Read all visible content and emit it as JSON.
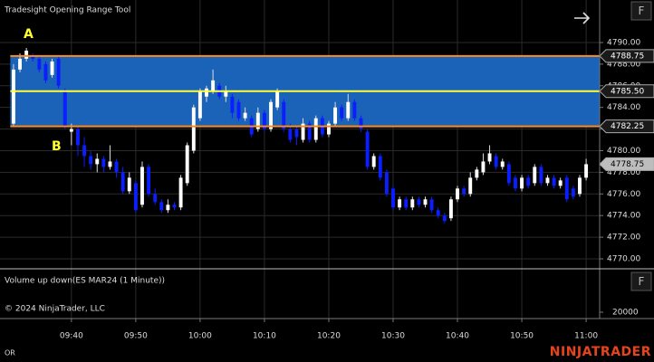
{
  "chart_data": {
    "type": "candlestick",
    "title": "Tradesight Opening Range Tool",
    "x": [
      571,
      572,
      573,
      574,
      575,
      576,
      577,
      578,
      579,
      580,
      581,
      582,
      583,
      584,
      585,
      586,
      587,
      588,
      589,
      590,
      591,
      592,
      593,
      594,
      595,
      596,
      597,
      598,
      599,
      600,
      601,
      602,
      603,
      604,
      605,
      606,
      607,
      608,
      609,
      610,
      611,
      612,
      613,
      614,
      615,
      616,
      617,
      618,
      619,
      620,
      621,
      622,
      623,
      624,
      625,
      626,
      627,
      628,
      629,
      630,
      631,
      632,
      633,
      634,
      635,
      636,
      637,
      638,
      639,
      640,
      641,
      642,
      643,
      644,
      645,
      646,
      647,
      648,
      649,
      650,
      651,
      652,
      653,
      654,
      655,
      656,
      657,
      658,
      659,
      660
    ],
    "open": [
      4782.5,
      4787.5,
      4788.5,
      4788.75,
      4788.5,
      4788,
      4787,
      4788.5,
      4785.5,
      4781.75,
      4782,
      4780.5,
      4779.5,
      4778.75,
      4779.25,
      4778.5,
      4779,
      4778,
      4776.25,
      4777,
      4775,
      4778.5,
      4776,
      4775.25,
      4774.5,
      4775,
      4774.75,
      4777,
      4780,
      4783,
      4785,
      4785.5,
      4786,
      4785,
      4785,
      4784.5,
      4783,
      4783,
      4782,
      4783.5,
      4782,
      4784,
      4784.5,
      4782,
      4782,
      4781,
      4782.5,
      4781,
      4783,
      4781.5,
      4782.5,
      4784,
      4783,
      4784.5,
      4783,
      4781.75,
      4778.5,
      4779.5,
      4778,
      4776.5,
      4774.75,
      4775.5,
      4774.75,
      4775.5,
      4775,
      4775.5,
      4774.5,
      4774,
      4773.75,
      4775.5,
      4776.5,
      4776,
      4777.5,
      4778,
      4779,
      4779.5,
      4778.5,
      4778.75,
      4777.5,
      4776.5,
      4777.5,
      4777,
      4778.5,
      4777,
      4777.5,
      4776.75,
      4777.5,
      4776.5,
      4776,
      4777.5
    ],
    "high": [
      4788,
      4789,
      4789.5,
      4789,
      4788.75,
      4788.25,
      4788.5,
      4788.75,
      4785.75,
      4782.5,
      4782.25,
      4781.25,
      4780,
      4779.75,
      4779.5,
      4780.5,
      4779.25,
      4778.5,
      4778,
      4777.25,
      4779,
      4778.75,
      4776.5,
      4775.5,
      4775.5,
      4775.25,
      4777.75,
      4780.75,
      4784.25,
      4785.75,
      4786,
      4787.5,
      4786.25,
      4786,
      4785.25,
      4784.75,
      4784,
      4783.25,
      4784,
      4783.75,
      4784.75,
      4785.75,
      4784.75,
      4782.5,
      4782.25,
      4783,
      4782.75,
      4783.25,
      4783.25,
      4782.75,
      4784.5,
      4784.25,
      4785.25,
      4784.75,
      4783.25,
      4782,
      4779.75,
      4779.75,
      4778.25,
      4776.75,
      4775.75,
      4775.75,
      4775.75,
      4775.75,
      4775.75,
      4775.75,
      4774.75,
      4774.25,
      4775.75,
      4776.75,
      4776.75,
      4778,
      4778.5,
      4779.75,
      4780.5,
      4779.75,
      4779.25,
      4779,
      4777.75,
      4777.75,
      4777.75,
      4778.75,
      4778.75,
      4777.75,
      4777.75,
      4777.5,
      4777.75,
      4776.75,
      4777.75,
      4779.25
    ],
    "low": [
      4782.25,
      4787.25,
      4788.25,
      4788.25,
      4787.25,
      4786.25,
      4786.75,
      4785.75,
      4782,
      4780.5,
      4779.5,
      4778.5,
      4778.25,
      4778,
      4778,
      4778.25,
      4777.5,
      4776,
      4776,
      4774.25,
      4774.75,
      4775.75,
      4775,
      4774.25,
      4774.25,
      4774.5,
      4774.5,
      4776.75,
      4779.75,
      4782.75,
      4784.5,
      4785.25,
      4784.75,
      4784.5,
      4783,
      4782.75,
      4782.75,
      4781.25,
      4781.75,
      4781.75,
      4781.75,
      4783.75,
      4781.75,
      4780.75,
      4780.5,
      4780.75,
      4780.75,
      4780.75,
      4781.25,
      4781.25,
      4782.25,
      4782.75,
      4782.75,
      4782.75,
      4781.75,
      4778.25,
      4778.25,
      4777.25,
      4775.75,
      4774.5,
      4774.5,
      4774.5,
      4774.5,
      4774.75,
      4774.75,
      4774.25,
      4773.75,
      4773.25,
      4773.5,
      4775.25,
      4775.75,
      4775.75,
      4777.25,
      4777.75,
      4778.75,
      4778.25,
      4778.25,
      4776.75,
      4776.25,
      4776.25,
      4776.5,
      4776.75,
      4776.75,
      4776.75,
      4776.5,
      4776.5,
      4775.25,
      4775.5,
      4775.75,
      4777.25
    ],
    "close": [
      4787.5,
      4788.5,
      4789.25,
      4788.5,
      4787.5,
      4786.5,
      4788.25,
      4786,
      4782.25,
      4782,
      4780.5,
      4779.5,
      4778.75,
      4779.25,
      4778.5,
      4779,
      4778,
      4776.25,
      4777.5,
      4774.5,
      4778.5,
      4776,
      4775.25,
      4774.5,
      4775,
      4774.75,
      4777.5,
      4780.5,
      4784,
      4785.5,
      4785.75,
      4786.5,
      4785,
      4785.5,
      4783.5,
      4783,
      4783.5,
      4781.5,
      4783.5,
      4782,
      4784.5,
      4785.5,
      4782,
      4781,
      4781.25,
      4782.5,
      4781,
      4783,
      4781.5,
      4782.5,
      4784,
      4783,
      4784.5,
      4783,
      4782,
      4778.5,
      4779.5,
      4777.5,
      4776,
      4774.75,
      4775.5,
      4774.75,
      4775.5,
      4775,
      4775.5,
      4774.5,
      4774,
      4773.5,
      4775.5,
      4776.5,
      4776,
      4777.5,
      4778.25,
      4779,
      4779.75,
      4778.5,
      4779,
      4777,
      4776.5,
      4777.5,
      4776.75,
      4778.5,
      4777,
      4777.5,
      4776.75,
      4777.25,
      4775.5,
      4775.75,
      4777.5,
      4778.75
    ],
    "up_color": "#ffffff",
    "down_color": "#0a1eff",
    "xlim": [
      568.9,
      662.1
    ],
    "xticks": [
      {
        "value": 580,
        "label": "09:40"
      },
      {
        "value": 590,
        "label": "09:50"
      },
      {
        "value": 600,
        "label": "10:00"
      },
      {
        "value": 610,
        "label": "10:10"
      },
      {
        "value": 620,
        "label": "10:20"
      },
      {
        "value": 630,
        "label": "10:30"
      },
      {
        "value": 640,
        "label": "10:40"
      },
      {
        "value": 650,
        "label": "10:50"
      },
      {
        "value": 660,
        "label": "11:00"
      }
    ],
    "ylim": [
      4769.08,
      4793.93
    ],
    "yticks": [
      {
        "value": 4770,
        "label": "4770.00"
      },
      {
        "value": 4772,
        "label": "4772.00"
      },
      {
        "value": 4774,
        "label": "4774.00"
      },
      {
        "value": 4776,
        "label": "4776.00"
      },
      {
        "value": 4778,
        "label": "4778.00"
      },
      {
        "value": 4780,
        "label": "4780.00"
      },
      {
        "value": 4782,
        "label": "4782.00"
      },
      {
        "value": 4784,
        "label": "4784.00"
      },
      {
        "value": 4786,
        "label": "4786.00"
      },
      {
        "value": 4788,
        "label": "4788.00"
      },
      {
        "value": 4790,
        "label": "4790.00"
      }
    ],
    "grid": true,
    "opening_range": {
      "high": 4788.75,
      "mid": {
        "value": 4785.5,
        "label": "4785.50"
      },
      "low": 4782.25,
      "fill_color": "#1a63b8",
      "edge_color": "#ff8c1a",
      "mid_color": "#ffff33"
    },
    "last_price": 4778.75,
    "annotations": [
      "A",
      "B"
    ],
    "volume_panel": {
      "title": "Volume up down(ES MAR24 (1 Minute))",
      "yticks": [
        20000
      ]
    },
    "copyright": "© 2024 NinjaTrader, LLC",
    "footer_label": "OR",
    "brand": "NINJATRADER",
    "buttons": [
      "F",
      "F"
    ]
  }
}
